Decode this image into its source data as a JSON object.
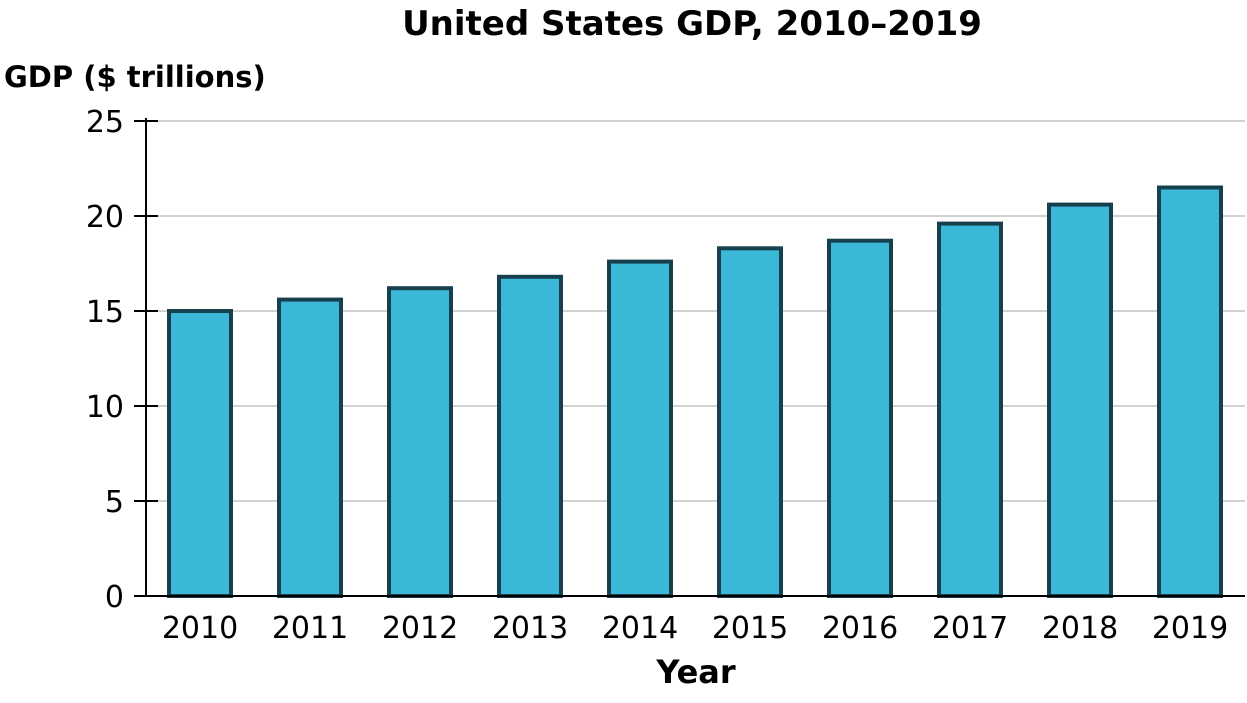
{
  "chart_data": {
    "type": "bar",
    "title": "United States GDP, 2010–2019",
    "xlabel": "Year",
    "ylabel": "GDP ($ trillions)",
    "categories": [
      "2010",
      "2011",
      "2012",
      "2013",
      "2014",
      "2015",
      "2016",
      "2017",
      "2018",
      "2019"
    ],
    "values": [
      15.0,
      15.6,
      16.2,
      16.8,
      17.6,
      18.3,
      18.7,
      19.6,
      20.6,
      21.5
    ],
    "ylim": [
      0,
      25
    ],
    "yticks": [
      "0",
      "5",
      "10",
      "15",
      "20",
      "25"
    ],
    "grid": true,
    "colors": {
      "bar_fill": "#3bb8d8",
      "bar_stroke": "#17404f",
      "grid": "#c4c4c4"
    }
  }
}
